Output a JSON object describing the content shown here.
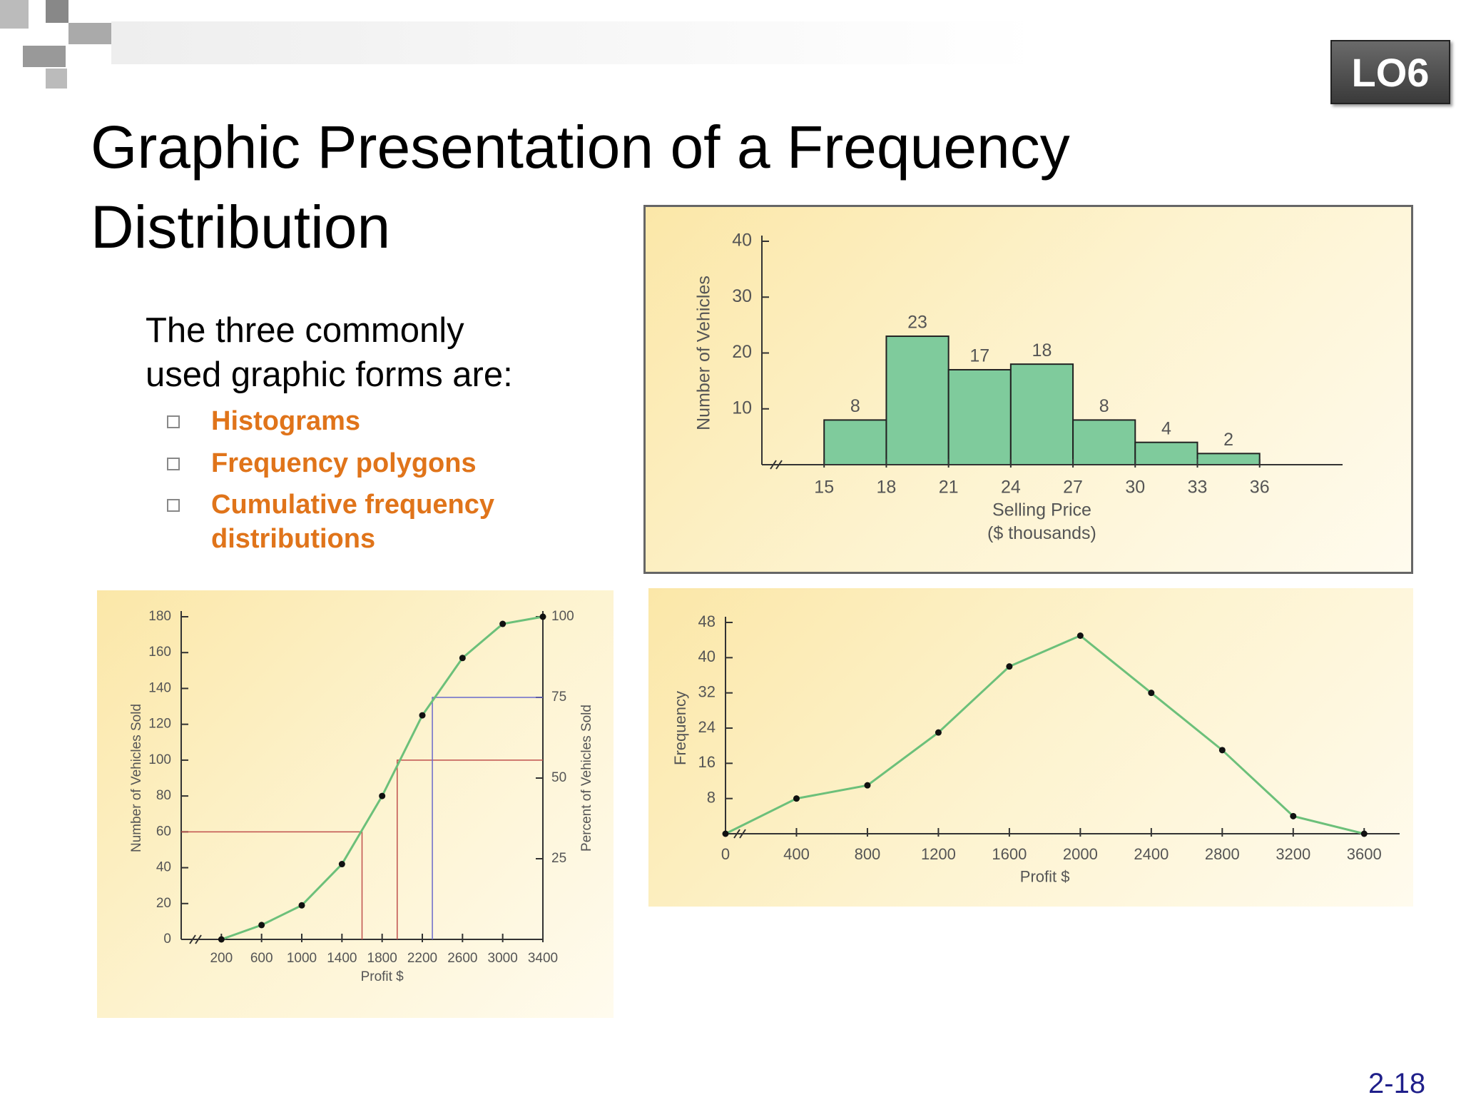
{
  "header": {
    "title": "Graphic Presentation of a Frequency Distribution",
    "badge": "LO6"
  },
  "intro": "The three commonly used graphic forms are:",
  "bullets": [
    "Histograms",
    "Frequency polygons",
    "Cumulative frequency distributions"
  ],
  "page_number": "2-18",
  "chart_data": [
    {
      "type": "histogram",
      "bins": [
        15,
        18,
        21,
        24,
        27,
        30,
        33,
        36
      ],
      "values": [
        8,
        23,
        17,
        18,
        8,
        4,
        2
      ],
      "color": "#7fcb9c",
      "xlim": [
        12,
        40
      ],
      "xticks": [
        15,
        18,
        21,
        24,
        27,
        30,
        33,
        36
      ],
      "ylim": [
        0,
        40
      ],
      "yticks": [
        10,
        20,
        30,
        40
      ],
      "ylabel": "Number of Vehicles",
      "xlabel": [
        "Selling Price",
        "($ thousands)"
      ]
    },
    {
      "type": "line",
      "x": [
        200,
        600,
        1000,
        1400,
        1800,
        2200,
        2600,
        3000,
        3400
      ],
      "series": [
        {
          "color": "#6cc07a",
          "values": [
            0,
            8,
            19,
            42,
            80,
            125,
            157,
            176,
            180
          ]
        }
      ],
      "xlim": [
        -200,
        3400
      ],
      "xticks": [
        200,
        600,
        1000,
        1400,
        1800,
        2200,
        2600,
        3000,
        3400
      ],
      "ylim": [
        0,
        180
      ],
      "yticks": [
        0,
        20,
        40,
        60,
        80,
        100,
        120,
        140,
        160,
        180
      ],
      "y2lim": [
        0,
        100
      ],
      "y2ticks": [
        25,
        50,
        75,
        100
      ],
      "guides": [
        {
          "x": 1600,
          "y": 60,
          "color": "#c0504d"
        },
        {
          "x": 1950,
          "y": 100,
          "color": "#c0504d"
        },
        {
          "x": 2300,
          "y": 135,
          "color": "#6a6acb"
        }
      ],
      "ylabel": "Number of Vehicles Sold",
      "y2label": "Percent of Vehicles Sold",
      "xlabel": "Profit $"
    },
    {
      "type": "line",
      "x": [
        0,
        400,
        800,
        1200,
        1600,
        2000,
        2400,
        2800,
        3200,
        3600
      ],
      "series": [
        {
          "color": "#6cc07a",
          "values": [
            0,
            8,
            11,
            23,
            38,
            45,
            32,
            19,
            4,
            0
          ]
        }
      ],
      "xlim": [
        0,
        3800
      ],
      "xticks": [
        0,
        400,
        800,
        1200,
        1600,
        2000,
        2400,
        2800,
        3200,
        3600
      ],
      "ylim": [
        0,
        48
      ],
      "yticks": [
        8,
        16,
        24,
        32,
        40,
        48
      ],
      "ylabel": "Frequency",
      "xlabel": "Profit $"
    }
  ]
}
